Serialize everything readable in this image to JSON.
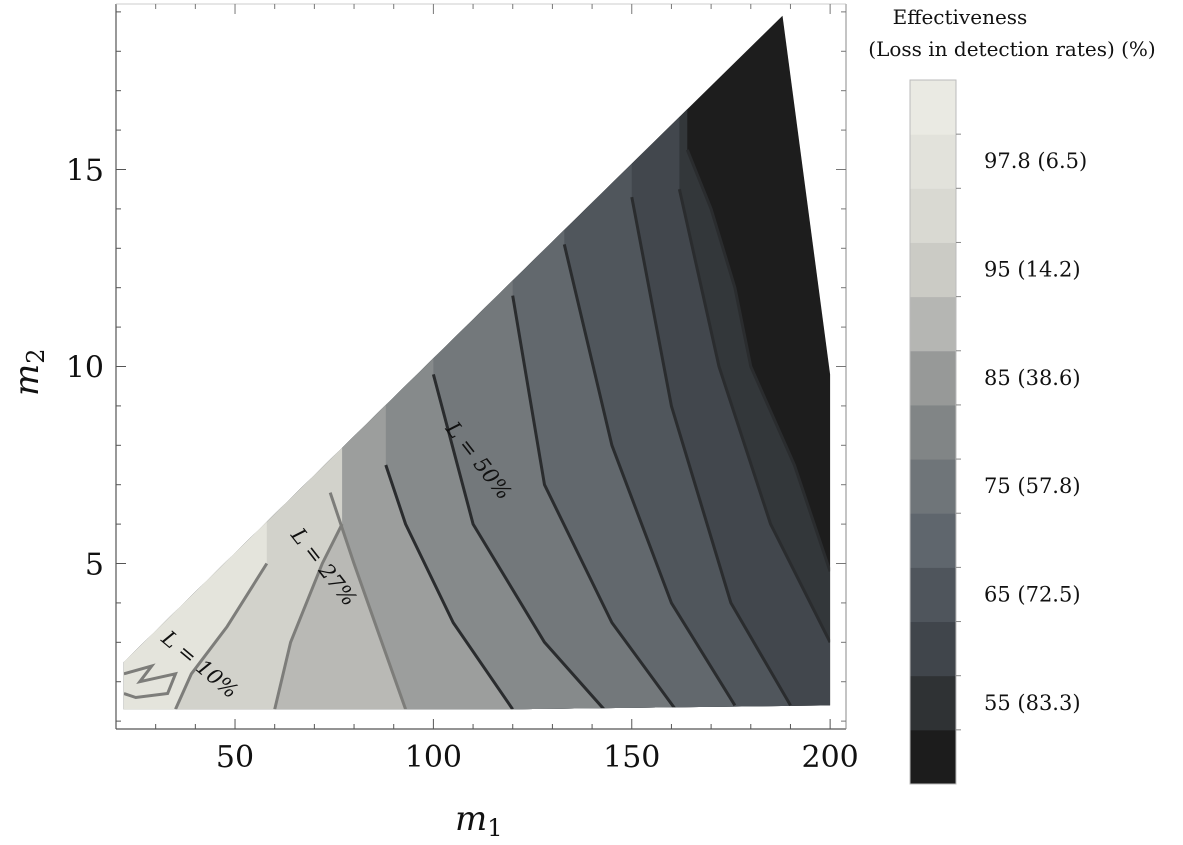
{
  "chart_data": {
    "type": "contour",
    "xlabel_main": "m",
    "xlabel_sub": "1",
    "ylabel_main": "m",
    "ylabel_sub": "2",
    "xlim": [
      20,
      204
    ],
    "ylim": [
      0.8,
      19.2
    ],
    "x_ticks": [
      {
        "value": 50,
        "label": "50"
      },
      {
        "value": 100,
        "label": "100"
      },
      {
        "value": 150,
        "label": "150"
      },
      {
        "value": 200,
        "label": "200"
      }
    ],
    "y_ticks": [
      {
        "value": 5,
        "label": "5"
      },
      {
        "value": 10,
        "label": "10"
      },
      {
        "value": 15,
        "label": "15"
      }
    ],
    "region": [
      [
        22,
        1.3
      ],
      [
        60,
        1.3
      ],
      [
        120,
        1.3
      ],
      [
        200,
        1.4
      ],
      [
        200,
        9.8
      ],
      [
        188,
        18.9
      ],
      [
        22,
        2.5
      ]
    ],
    "contour_lines": [
      {
        "points": [
          [
            35,
            1.3
          ],
          [
            39,
            2.2
          ],
          [
            48,
            3.4
          ],
          [
            58,
            5.0
          ]
        ]
      },
      {
        "points": [
          [
            60,
            1.3
          ],
          [
            64,
            3.0
          ],
          [
            72,
            5.0
          ],
          [
            77,
            6.0
          ]
        ]
      },
      {
        "points": [
          [
            93,
            1.3
          ],
          [
            87,
            3.0
          ],
          [
            80,
            5.0
          ],
          [
            74,
            6.8
          ]
        ]
      },
      {
        "points": [
          [
            120,
            1.3
          ],
          [
            105,
            3.5
          ],
          [
            93,
            6.0
          ],
          [
            88,
            7.5
          ]
        ]
      },
      {
        "points": [
          [
            143,
            1.3
          ],
          [
            128,
            3.0
          ],
          [
            110,
            6.0
          ],
          [
            100,
            9.8
          ]
        ]
      },
      {
        "points": [
          [
            161,
            1.3
          ],
          [
            145,
            3.5
          ],
          [
            128,
            7.0
          ],
          [
            120,
            11.8
          ]
        ]
      },
      {
        "points": [
          [
            176,
            1.4
          ],
          [
            160,
            4.0
          ],
          [
            145,
            8.0
          ],
          [
            133,
            13.1
          ]
        ]
      },
      {
        "points": [
          [
            190,
            1.4
          ],
          [
            175,
            4.0
          ],
          [
            160,
            9.0
          ],
          [
            150,
            14.3
          ]
        ]
      },
      {
        "points": [
          [
            200,
            3.0
          ],
          [
            185,
            6.0
          ],
          [
            172,
            10.0
          ],
          [
            162,
            14.5
          ]
        ]
      },
      {
        "points": [
          [
            200,
            4.8
          ],
          [
            191,
            7.5
          ],
          [
            180,
            10.0
          ],
          [
            176,
            12.0
          ],
          [
            170,
            14.0
          ],
          [
            164,
            15.5
          ]
        ]
      }
    ],
    "contour_labels": [
      {
        "text": "L = 10%",
        "x": 40,
        "y": 2.3,
        "angle": 40
      },
      {
        "text": "L = 27%",
        "x": 71,
        "y": 4.8,
        "angle": 52
      },
      {
        "text": "L = 50%",
        "x": 110,
        "y": 7.5,
        "angle": 52
      }
    ],
    "legend": {
      "title_line1": "Effectiveness",
      "title_line2": "(Loss in detection rates) (%)",
      "bands": [
        "#1c1c1c",
        "#2f3234",
        "#40454b",
        "#4f555c",
        "#5f666d",
        "#6f7579",
        "#818586",
        "#979998",
        "#b5b6b3",
        "#cbcbc5",
        "#d9d9d2",
        "#e2e2db",
        "#eaeae3"
      ],
      "labels": [
        {
          "text": "97.8  (6.5)",
          "band": 11
        },
        {
          "text": "95  (14.2)",
          "band": 9
        },
        {
          "text": "85  (38.6)",
          "band": 7
        },
        {
          "text": "75  (57.8)",
          "band": 5
        },
        {
          "text": "65  (72.5)",
          "band": 3
        },
        {
          "text": "55  (83.3)",
          "band": 1
        }
      ]
    }
  }
}
